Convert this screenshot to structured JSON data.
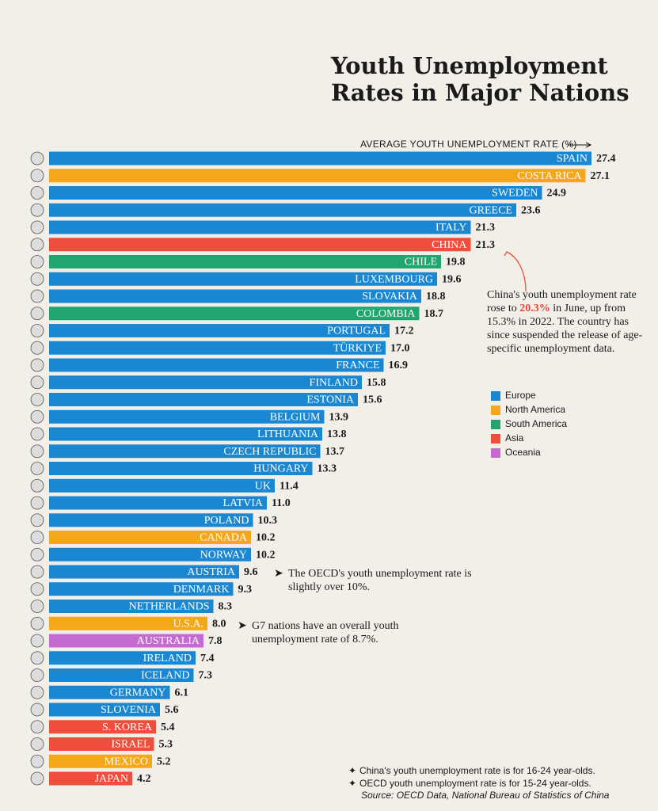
{
  "chart_data": {
    "type": "hbar",
    "title": "Youth Unemployment Rates in Major Nations",
    "subtitle": "AVERAGE YOUTH UNEMPLOYMENT RATE (%)",
    "categories": [
      "SPAIN",
      "COSTA RICA",
      "SWEDEN",
      "GREECE",
      "ITALY",
      "CHINA",
      "CHILE",
      "LUXEMBOURG",
      "SLOVAKIA",
      "COLOMBIA",
      "PORTUGAL",
      "TÜRKIYE",
      "FRANCE",
      "FINLAND",
      "ESTONIA",
      "BELGIUM",
      "LITHUANIA",
      "CZECH REPUBLIC",
      "HUNGARY",
      "UK",
      "LATVIA",
      "POLAND",
      "CANADA",
      "NORWAY",
      "AUSTRIA",
      "DENMARK",
      "NETHERLANDS",
      "U.S.A.",
      "AUSTRALIA",
      "IRELAND",
      "ICELAND",
      "GERMANY",
      "SLOVENIA",
      "S. KOREA",
      "ISRAEL",
      "MEXICO",
      "JAPAN"
    ],
    "series": [
      {
        "name": "Europe",
        "color": "#1a87d3",
        "values": [
          27.4,
          null,
          24.9,
          23.6,
          21.3,
          null,
          null,
          19.6,
          18.8,
          null,
          17.2,
          17.0,
          16.9,
          15.8,
          15.6,
          13.9,
          13.8,
          13.7,
          13.3,
          11.4,
          11.0,
          10.3,
          null,
          10.2,
          9.6,
          9.3,
          8.3,
          null,
          null,
          7.4,
          7.3,
          6.1,
          5.6,
          null,
          null,
          null,
          null
        ],
        "value_labels": [
          "27.4",
          null,
          "24.9",
          "23.6",
          "21.3",
          null,
          null,
          "19.6",
          "18.8",
          null,
          "17.2",
          "17.0",
          "16.9",
          "15.8",
          "15.6",
          "13.9",
          "13.8",
          "13.7",
          "13.3",
          "11.4",
          "11.0",
          "10.3",
          null,
          "10.2",
          "9.6",
          "9.3",
          "8.3",
          null,
          null,
          "7.4",
          "7.3",
          "6.1",
          "5.6",
          null,
          null,
          null,
          null
        ]
      },
      {
        "name": "North America",
        "color": "#f4a71a",
        "values": [
          null,
          27.1,
          null,
          null,
          null,
          null,
          null,
          null,
          null,
          null,
          null,
          null,
          null,
          null,
          null,
          null,
          null,
          null,
          null,
          null,
          null,
          null,
          10.2,
          null,
          null,
          null,
          null,
          8.0,
          null,
          null,
          null,
          null,
          null,
          null,
          null,
          5.2,
          null
        ],
        "value_labels": [
          null,
          "27.1",
          null,
          null,
          null,
          null,
          null,
          null,
          null,
          null,
          null,
          null,
          null,
          null,
          null,
          null,
          null,
          null,
          null,
          null,
          null,
          null,
          "10.2",
          null,
          null,
          null,
          null,
          "8.0",
          null,
          null,
          null,
          null,
          null,
          null,
          null,
          "5.2",
          null
        ]
      },
      {
        "name": "South America",
        "color": "#22a56f",
        "values": [
          null,
          null,
          null,
          null,
          null,
          null,
          19.8,
          null,
          null,
          18.7,
          null,
          null,
          null,
          null,
          null,
          null,
          null,
          null,
          null,
          null,
          null,
          null,
          null,
          null,
          null,
          null,
          null,
          null,
          null,
          null,
          null,
          null,
          null,
          null,
          null,
          null,
          null
        ]
      },
      {
        "name": "Asia",
        "color": "#ef4e3c",
        "values": [
          null,
          null,
          null,
          null,
          null,
          21.3,
          null,
          null,
          null,
          null,
          null,
          null,
          null,
          null,
          null,
          null,
          null,
          null,
          null,
          null,
          null,
          null,
          null,
          null,
          null,
          null,
          null,
          null,
          null,
          null,
          null,
          null,
          null,
          5.4,
          5.3,
          null,
          4.2
        ]
      },
      {
        "name": "Oceania",
        "color": "#c46ad0",
        "values": [
          null,
          null,
          null,
          null,
          null,
          null,
          null,
          null,
          null,
          null,
          null,
          null,
          null,
          null,
          null,
          null,
          null,
          null,
          null,
          null,
          null,
          null,
          null,
          null,
          null,
          null,
          null,
          null,
          7.8,
          null,
          null,
          null,
          null,
          null,
          null,
          null,
          null
        ]
      }
    ],
    "annotations": {
      "china": [
        "China's youth unemployment rate rose to ",
        "20.3%",
        " in June, up from 15.3% in 2022. The country has since suspended the release of age-specific unemployment data."
      ],
      "oecd": "The OECD's youth unemployment rate is slightly over 10%.",
      "g7": "G7 nations have an overall youth unemployment rate of 8.7%."
    },
    "footnotes": [
      "China's youth unemployment rate is for 16-24 year-olds.",
      "OECD youth unemployment rate is for 15-24 year-olds."
    ],
    "source": "Source:  OECD Data, National Bureau of Statistics of China"
  }
}
